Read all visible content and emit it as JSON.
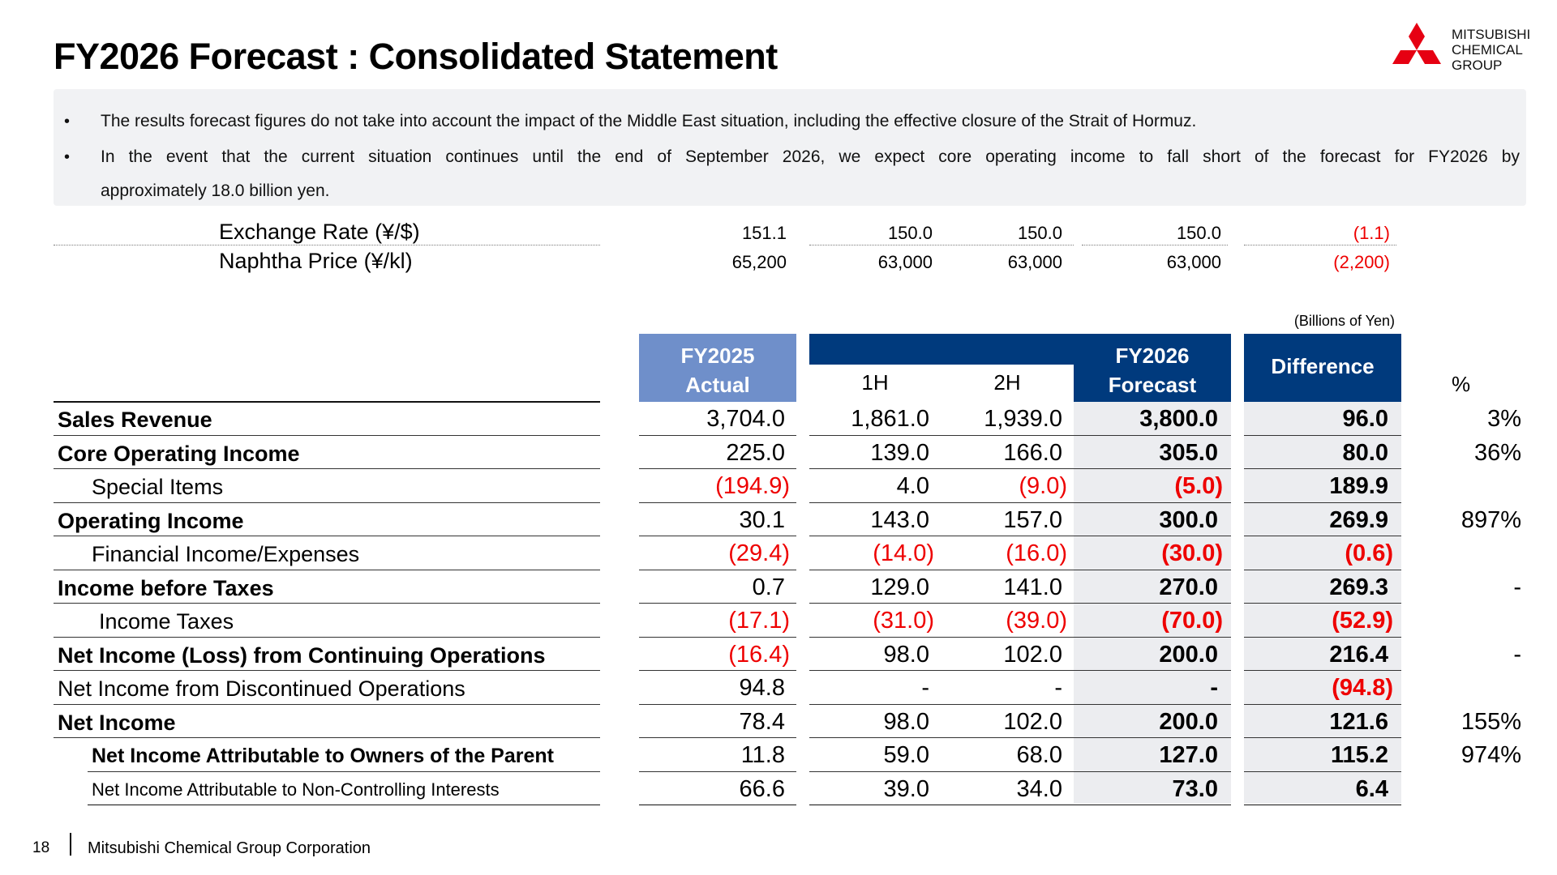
{
  "title": "FY2026 Forecast : Consolidated Statement",
  "logo": {
    "lines": [
      "MITSUBISHI",
      "CHEMICAL",
      "GROUP"
    ],
    "color": "#e60012"
  },
  "notes": [
    {
      "bullet": "•",
      "text": "The results forecast figures do not take into account the impact of the Middle East situation, including the effective closure of the Strait of Hormuz."
    },
    {
      "bullet": "•",
      "text_line1": "In the event that the current situation continues until the end of September 2026, we expect core operating income to fall short of the forecast for FY2026 by",
      "text_line2": "approximately 18.0 billion yen."
    }
  ],
  "assumptions": [
    {
      "label": "Exchange Rate (¥/$)",
      "fy2025": "151.1",
      "h1": "150.0",
      "h2": "150.0",
      "fy2026": "150.0",
      "diff": "(1.1)"
    },
    {
      "label": "Naphtha Price  (¥/kl)",
      "fy2025": "65,200",
      "h1": "63,000",
      "h2": "63,000",
      "fy2026": "63,000",
      "diff": "(2,200)"
    }
  ],
  "units": "(Billions of Yen)",
  "headers": {
    "fy2025_line1": "FY2025",
    "fy2025_line2": "Actual",
    "fy2026_line1": "FY2026",
    "fy2026_line2": "Forecast",
    "h1": "1H",
    "h2": "2H",
    "difference": "Difference",
    "pct": "%"
  },
  "colors": {
    "fy2025_header": "#6f8fca",
    "fy2026_header": "#003a7d",
    "negative": "#ee0000",
    "forecast_bg": "#ecedf0"
  },
  "rows": [
    {
      "label": "Sales Revenue",
      "bold": true,
      "indent": 0,
      "fy2025": "3,704.0",
      "h1": "1,861.0",
      "h2": "1,939.0",
      "fy2026": "3,800.0",
      "diff": "96.0",
      "pct": "3%"
    },
    {
      "label": "Core Operating Income",
      "bold": true,
      "indent": 0,
      "fy2025": "225.0",
      "h1": "139.0",
      "h2": "166.0",
      "fy2026": "305.0",
      "diff": "80.0",
      "pct": "36%"
    },
    {
      "label": "Special Items",
      "bold": false,
      "indent": 1,
      "fy2025": "(194.9)",
      "h1": "4.0",
      "h2": "(9.0)",
      "fy2026": "(5.0)",
      "diff": "189.9",
      "pct": ""
    },
    {
      "label": "Operating Income",
      "bold": true,
      "indent": 0,
      "fy2025": "30.1",
      "h1": "143.0",
      "h2": "157.0",
      "fy2026": "300.0",
      "diff": "269.9",
      "pct": "897%"
    },
    {
      "label": "Financial Income/Expenses",
      "bold": false,
      "indent": 1,
      "fy2025": "(29.4)",
      "h1": "(14.0)",
      "h2": "(16.0)",
      "fy2026": "(30.0)",
      "diff": "(0.6)",
      "pct": ""
    },
    {
      "label": "Income before Taxes",
      "bold": true,
      "indent": 0,
      "fy2025": "0.7",
      "h1": "129.0",
      "h2": "141.0",
      "fy2026": "270.0",
      "diff": "269.3",
      "pct": "-"
    },
    {
      "label": "Income Taxes",
      "bold": false,
      "indent": 2,
      "fy2025": "(17.1)",
      "h1": "(31.0)",
      "h2": "(39.0)",
      "fy2026": "(70.0)",
      "diff": "(52.9)",
      "pct": ""
    },
    {
      "label": "Net Income (Loss) from Continuing Operations",
      "bold": true,
      "indent": 0,
      "fy2025": "(16.4)",
      "h1": "98.0",
      "h2": "102.0",
      "fy2026": "200.0",
      "diff": "216.4",
      "pct": "-"
    },
    {
      "label": "Net Income from Discontinued Operations",
      "bold": false,
      "indent": 0,
      "fy2025": "94.8",
      "h1": "-",
      "h2": "-",
      "fy2026": "-",
      "diff": "(94.8)",
      "pct": ""
    },
    {
      "label": "Net Income",
      "bold": true,
      "indent": 0,
      "fy2025": "78.4",
      "h1": "98.0",
      "h2": "102.0",
      "fy2026": "200.0",
      "diff": "121.6",
      "pct": "155%"
    },
    {
      "label": "Net Income Attributable to Owners of the Parent",
      "bold": true,
      "indent": 1,
      "small": true,
      "fy2025": "11.8",
      "h1": "59.0",
      "h2": "68.0",
      "fy2026": "127.0",
      "diff": "115.2",
      "pct": "974%"
    },
    {
      "label": "Net Income Attributable to Non-Controlling Interests",
      "bold": false,
      "indent": 1,
      "smaller": true,
      "fy2025": "66.6",
      "h1": "39.0",
      "h2": "34.0",
      "fy2026": "73.0",
      "diff": "6.4",
      "pct": ""
    }
  ],
  "footer": {
    "page": "18",
    "company": "Mitsubishi Chemical Group Corporation"
  }
}
